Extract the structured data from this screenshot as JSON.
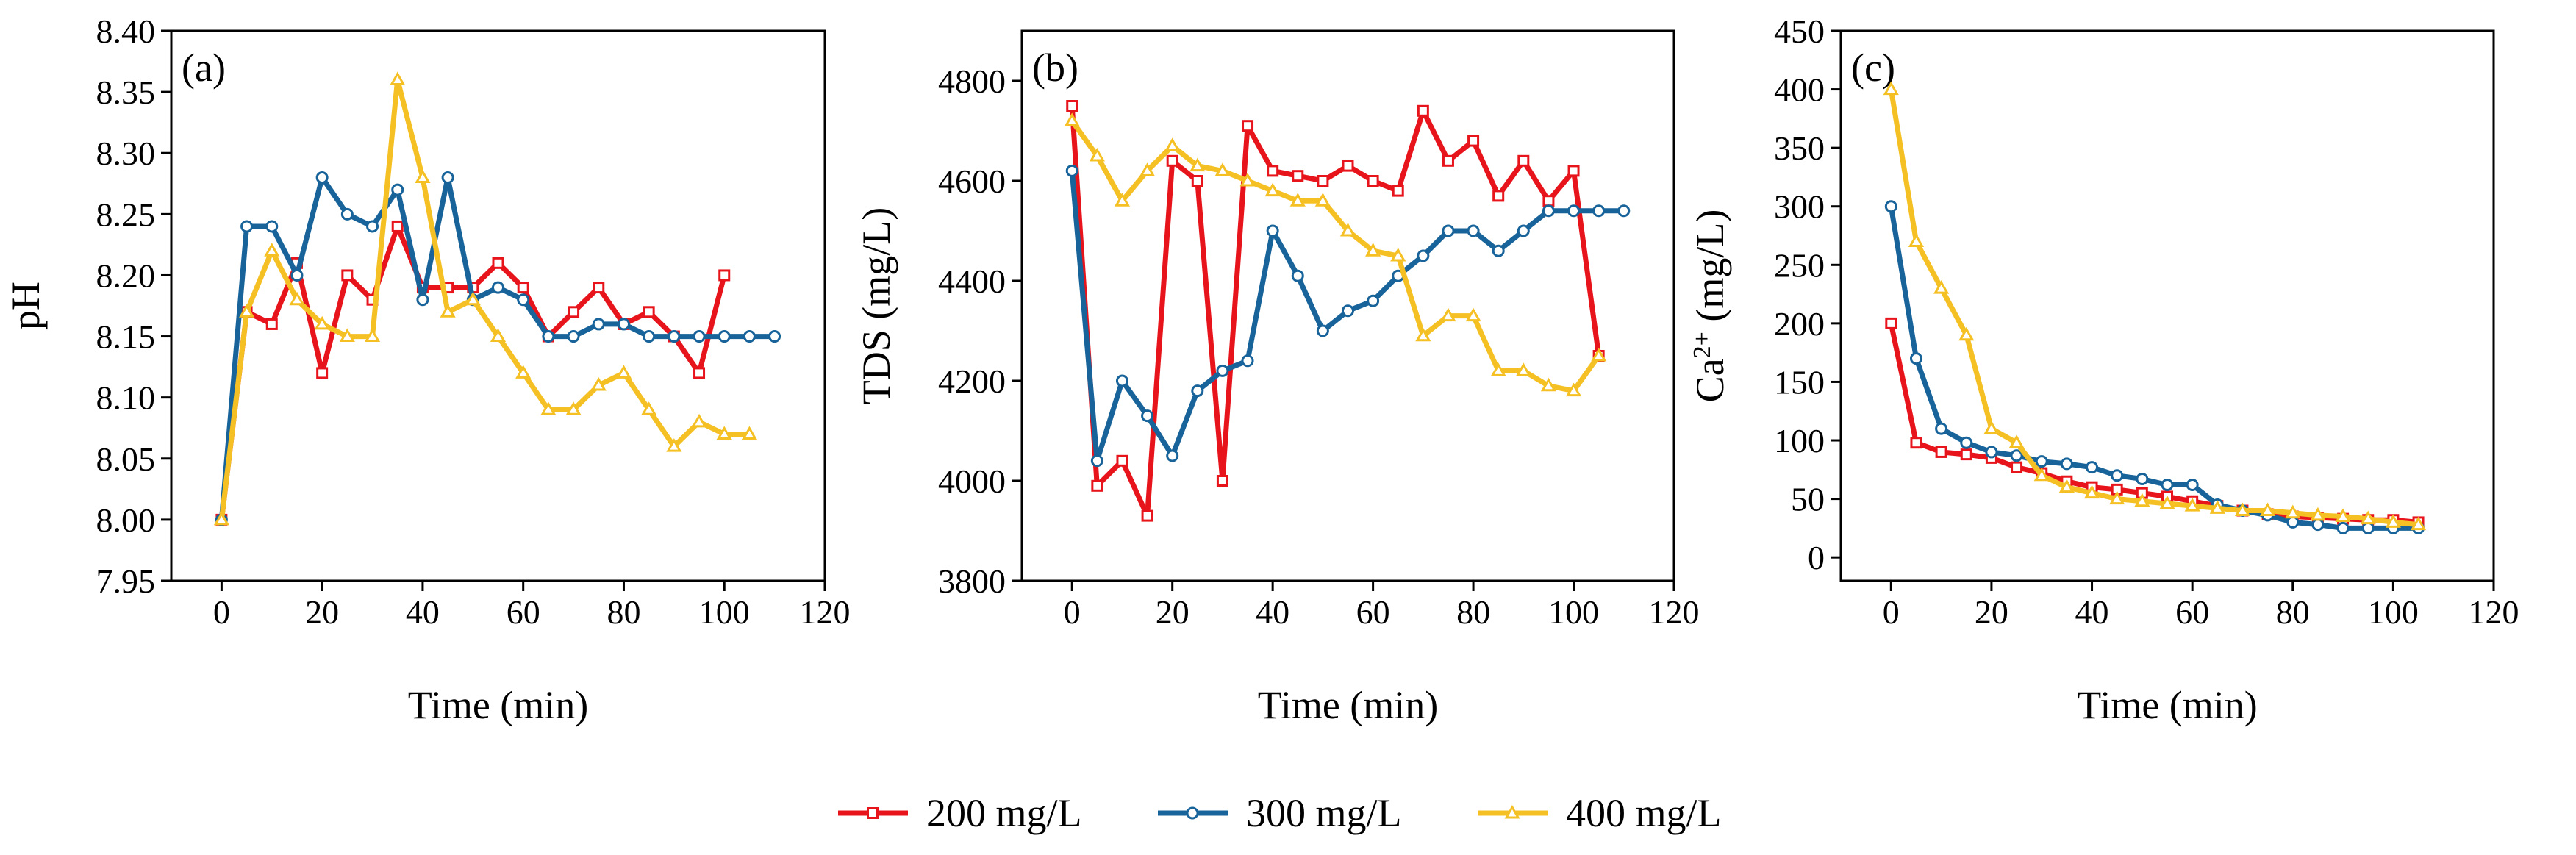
{
  "chart_data": [
    {
      "type": "line",
      "panel_label": "(a)",
      "xlabel": "Time (min)",
      "ylabel": "pH",
      "xlim": [
        -10,
        120
      ],
      "ylim": [
        7.95,
        8.4
      ],
      "xticks": [
        "0",
        "20",
        "40",
        "60",
        "80",
        "100",
        "120"
      ],
      "yticks": [
        "7.95",
        "8.00",
        "8.05",
        "8.10",
        "8.15",
        "8.20",
        "8.25",
        "8.30",
        "8.35",
        "8.40"
      ],
      "series": [
        {
          "name": "200 mg/L",
          "x": [
            0,
            5,
            10,
            15,
            20,
            25,
            30,
            35,
            40,
            45,
            50,
            55,
            60,
            65,
            70,
            75,
            80,
            85,
            90,
            95,
            100
          ],
          "y": [
            8.0,
            8.17,
            8.16,
            8.21,
            8.12,
            8.2,
            8.18,
            8.24,
            8.19,
            8.19,
            8.19,
            8.21,
            8.19,
            8.15,
            8.17,
            8.19,
            8.16,
            8.17,
            8.15,
            8.12,
            8.2
          ]
        },
        {
          "name": "300 mg/L",
          "x": [
            0,
            5,
            10,
            15,
            20,
            25,
            30,
            35,
            40,
            45,
            50,
            55,
            60,
            65,
            70,
            75,
            80,
            85,
            90,
            95,
            100,
            105,
            110
          ],
          "y": [
            8.0,
            8.24,
            8.24,
            8.2,
            8.28,
            8.25,
            8.24,
            8.27,
            8.18,
            8.28,
            8.18,
            8.19,
            8.18,
            8.15,
            8.15,
            8.16,
            8.16,
            8.15,
            8.15,
            8.15,
            8.15,
            8.15,
            8.15
          ]
        },
        {
          "name": "400 mg/L",
          "x": [
            0,
            5,
            10,
            15,
            20,
            25,
            30,
            35,
            40,
            45,
            50,
            55,
            60,
            65,
            70,
            75,
            80,
            85,
            90,
            95,
            100,
            105
          ],
          "y": [
            8.0,
            8.17,
            8.22,
            8.18,
            8.16,
            8.15,
            8.15,
            8.36,
            8.28,
            8.17,
            8.18,
            8.15,
            8.12,
            8.09,
            8.09,
            8.11,
            8.12,
            8.09,
            8.06,
            8.08,
            8.07,
            8.07
          ]
        }
      ]
    },
    {
      "type": "line",
      "panel_label": "(b)",
      "xlabel": "Time (min)",
      "ylabel": "TDS (mg/L)",
      "xlim": [
        -10,
        120
      ],
      "ylim": [
        3800,
        4900
      ],
      "xticks": [
        "0",
        "20",
        "40",
        "60",
        "80",
        "100",
        "120"
      ],
      "yticks": [
        "3800",
        "4000",
        "4200",
        "4400",
        "4600",
        "4800"
      ],
      "series": [
        {
          "name": "200 mg/L",
          "x": [
            0,
            5,
            10,
            15,
            20,
            25,
            30,
            35,
            40,
            45,
            50,
            55,
            60,
            65,
            70,
            75,
            80,
            85,
            90,
            95,
            100,
            105
          ],
          "y": [
            4750,
            3990,
            4040,
            3930,
            4640,
            4600,
            4000,
            4710,
            4620,
            4610,
            4600,
            4630,
            4600,
            4580,
            4740,
            4640,
            4680,
            4570,
            4640,
            4560,
            4620,
            4250
          ]
        },
        {
          "name": "300 mg/L",
          "x": [
            0,
            5,
            10,
            15,
            20,
            25,
            30,
            35,
            40,
            45,
            50,
            55,
            60,
            65,
            70,
            75,
            80,
            85,
            90,
            95,
            100,
            105,
            110
          ],
          "y": [
            4620,
            4040,
            4200,
            4130,
            4050,
            4180,
            4220,
            4240,
            4500,
            4410,
            4300,
            4340,
            4360,
            4410,
            4450,
            4500,
            4500,
            4460,
            4500,
            4540,
            4540,
            4540,
            4540
          ]
        },
        {
          "name": "400 mg/L",
          "x": [
            0,
            5,
            10,
            15,
            20,
            25,
            30,
            35,
            40,
            45,
            50,
            55,
            60,
            65,
            70,
            75,
            80,
            85,
            90,
            95,
            100,
            105
          ],
          "y": [
            4720,
            4650,
            4560,
            4620,
            4670,
            4630,
            4620,
            4600,
            4580,
            4560,
            4560,
            4500,
            4460,
            4450,
            4290,
            4330,
            4330,
            4220,
            4220,
            4190,
            4180,
            4250
          ]
        }
      ]
    },
    {
      "type": "line",
      "panel_label": "(c)",
      "xlabel": "Time (min)",
      "ylabel_parts": [
        "Ca",
        "2+",
        " (mg/L)"
      ],
      "xlim": [
        -10,
        120
      ],
      "ylim": [
        -20,
        450
      ],
      "xticks": [
        "0",
        "20",
        "40",
        "60",
        "80",
        "100",
        "120"
      ],
      "yticks": [
        "0",
        "50",
        "100",
        "150",
        "200",
        "250",
        "300",
        "350",
        "400",
        "450"
      ],
      "series": [
        {
          "name": "200 mg/L",
          "x": [
            0,
            5,
            10,
            15,
            20,
            25,
            30,
            35,
            40,
            45,
            50,
            55,
            60,
            65,
            70,
            75,
            80,
            85,
            90,
            95,
            100,
            105
          ],
          "y": [
            200,
            98,
            90,
            88,
            85,
            77,
            72,
            65,
            60,
            58,
            55,
            52,
            48,
            44,
            40,
            37,
            35,
            34,
            33,
            32,
            32,
            30
          ]
        },
        {
          "name": "300 mg/L",
          "x": [
            0,
            5,
            10,
            15,
            20,
            25,
            30,
            35,
            40,
            45,
            50,
            55,
            60,
            65,
            70,
            75,
            80,
            85,
            90,
            95,
            100,
            105
          ],
          "y": [
            300,
            170,
            110,
            98,
            90,
            87,
            82,
            80,
            77,
            70,
            67,
            62,
            62,
            45,
            40,
            36,
            30,
            28,
            25,
            25,
            25,
            25
          ]
        },
        {
          "name": "400 mg/L",
          "x": [
            0,
            5,
            10,
            15,
            20,
            25,
            30,
            35,
            40,
            45,
            50,
            55,
            60,
            65,
            70,
            75,
            80,
            85,
            90,
            95,
            100,
            105
          ],
          "y": [
            400,
            270,
            230,
            190,
            110,
            98,
            70,
            60,
            55,
            50,
            48,
            46,
            44,
            42,
            40,
            40,
            38,
            36,
            35,
            33,
            30,
            28
          ]
        }
      ]
    }
  ],
  "legend": {
    "position": "bottom-center",
    "entries": [
      {
        "name": "200 mg/L",
        "color": "#e8141c",
        "marker": "square"
      },
      {
        "name": "300 mg/L",
        "color": "#17639a",
        "marker": "circle"
      },
      {
        "name": "400 mg/L",
        "color": "#f5c023",
        "marker": "triangle"
      }
    ]
  },
  "styles": {
    "axis_color": "#000000",
    "series_colors": [
      "#e8141c",
      "#17639a",
      "#f5c023"
    ],
    "marker_fills": [
      "#ffffff",
      "#ffffff",
      "#ffffff"
    ]
  }
}
